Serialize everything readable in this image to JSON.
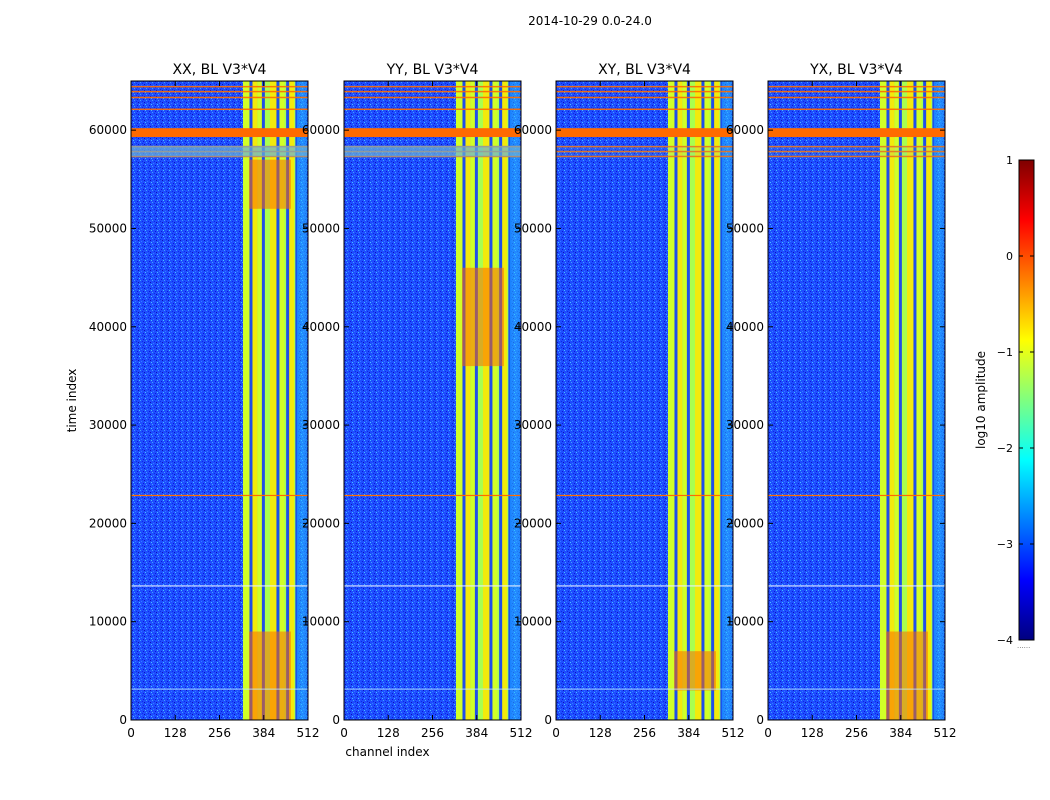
{
  "figure": {
    "suptitle": "2014-10-29 0.0-24.0"
  },
  "colors": {
    "background": "#00008f",
    "noise": "#1e5cff",
    "band": "#9cff5a",
    "hot": "#ff6a00",
    "rfi": "#ff6a00"
  },
  "chart_data": {
    "type": "heatmap",
    "x_label": "channel index",
    "y_label": "time index",
    "x_ticks": [
      0,
      128,
      256,
      384,
      512
    ],
    "y_ticks": [
      0,
      10000,
      20000,
      30000,
      40000,
      50000,
      60000
    ],
    "xlim": [
      0,
      512
    ],
    "ylim": [
      0,
      65000
    ],
    "colormap": "jet",
    "panels": [
      {
        "title": "XX, BL V3*V4",
        "band_start": 324,
        "band_end": 480,
        "hot_ranges": [
          [
            0,
            9000
          ],
          [
            52000,
            57000
          ]
        ]
      },
      {
        "title": "YY, BL V3*V4",
        "band_start": 324,
        "band_end": 480,
        "hot_ranges": [
          [
            36000,
            46000
          ]
        ]
      },
      {
        "title": "XY, BL V3*V4",
        "band_start": 324,
        "band_end": 480,
        "hot_ranges": [
          [
            3000,
            7000
          ]
        ]
      },
      {
        "title": "YX, BL V3*V4",
        "band_start": 324,
        "band_end": 480,
        "hot_ranges": [
          [
            0,
            9000
          ]
        ]
      }
    ],
    "rfi_rows": [
      59500,
      59800,
      62000,
      64000,
      22900,
      13700
    ],
    "colorbar": {
      "label": "log10 amplitude",
      "range": [
        -4,
        1
      ],
      "ticks": [
        "1",
        "0",
        "−1",
        "−2",
        "−3",
        "−4"
      ],
      "footer": "......"
    }
  }
}
